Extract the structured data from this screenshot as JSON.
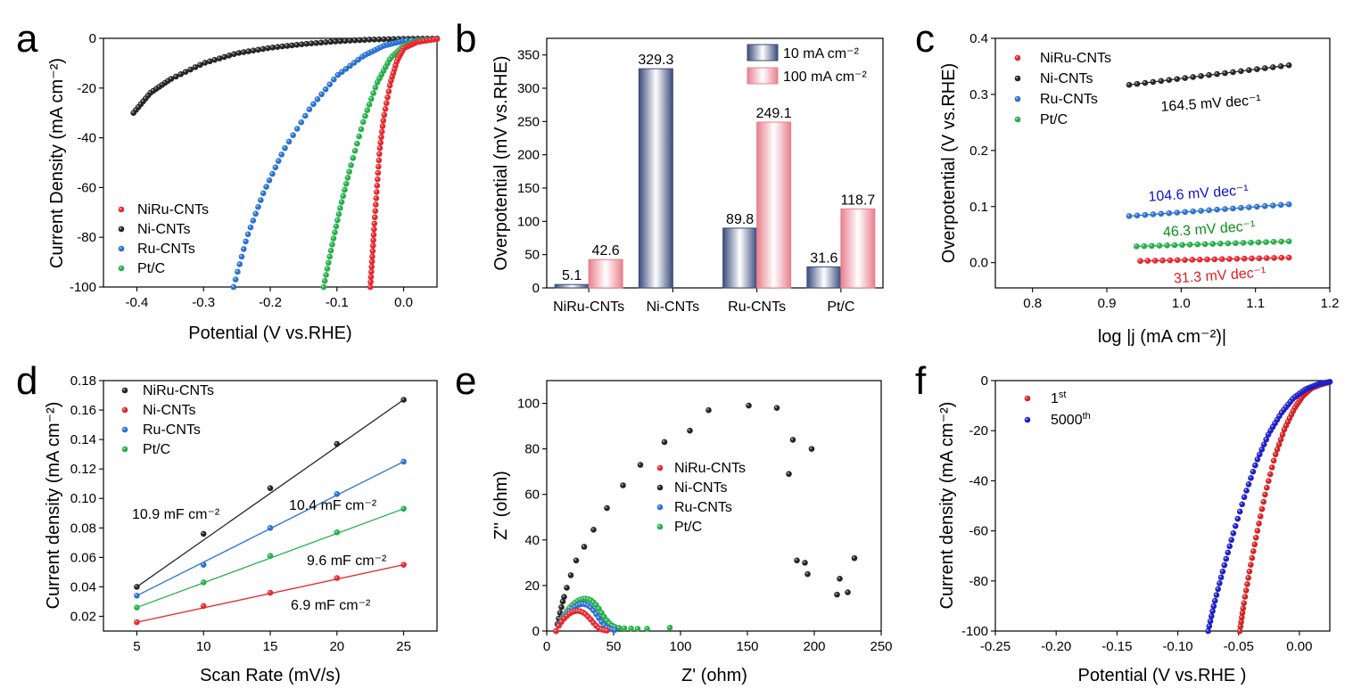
{
  "figure": {
    "colors": {
      "red": "#e8272e",
      "black": "#262626",
      "blue": "#2a72d1",
      "green": "#25b049",
      "navy": "#3b4c7c",
      "pink": "#e8808d",
      "darkblue": "#1010cc",
      "crimson": "#e31b23",
      "mrk_red": "#d62222",
      "dk_green": "#0a8f1a"
    }
  },
  "chart_data": [
    {
      "id": "a",
      "panel_label": "a",
      "type": "line",
      "xlabel": "Potential (V vs.RHE)",
      "ylabel": "Current Density (mA cm⁻²)",
      "xlim": [
        -0.45,
        0.05
      ],
      "ylim": [
        -100,
        0
      ],
      "xticks": [
        -0.4,
        -0.3,
        -0.2,
        -0.1,
        0.0
      ],
      "xticklabels": [
        "-0.4",
        "-0.3",
        "-0.2",
        "-0.1",
        "0.0"
      ],
      "yticks": [
        -100,
        -80,
        -60,
        -40,
        -20,
        0
      ],
      "yticklabels": [
        "-100",
        "-80",
        "-60",
        "-40",
        "-20",
        "0"
      ],
      "legend_position": "bottom-left",
      "series": [
        {
          "name": "NiRu-CNTs",
          "color": "#e8272e",
          "x": [
            0.05,
            0.02,
            0.0,
            -0.01,
            -0.02,
            -0.03,
            -0.036,
            -0.04,
            -0.044,
            -0.047,
            -0.05
          ],
          "y": [
            -0.3,
            -1.5,
            -4,
            -9,
            -18,
            -32,
            -45,
            -60,
            -75,
            -88,
            -100
          ]
        },
        {
          "name": "Ni-CNTs",
          "color": "#262626",
          "x": [
            0.05,
            0.0,
            -0.05,
            -0.1,
            -0.15,
            -0.2,
            -0.25,
            -0.3,
            -0.35,
            -0.38,
            -0.405
          ],
          "y": [
            -0.05,
            -0.2,
            -0.5,
            -1.2,
            -2.3,
            -3.8,
            -6,
            -10,
            -16.5,
            -22,
            -30
          ]
        },
        {
          "name": "Ru-CNTs",
          "color": "#2a72d1",
          "x": [
            0.05,
            0.0,
            -0.03,
            -0.06,
            -0.1,
            -0.14,
            -0.18,
            -0.21,
            -0.235,
            -0.255
          ],
          "y": [
            -0.2,
            -1,
            -3,
            -7,
            -15,
            -28,
            -45,
            -62,
            -80,
            -100
          ]
        },
        {
          "name": "Pt/C",
          "color": "#25b049",
          "x": [
            0.05,
            0.02,
            0.0,
            -0.02,
            -0.04,
            -0.06,
            -0.08,
            -0.095,
            -0.108,
            -0.12
          ],
          "y": [
            -0.2,
            -1,
            -3,
            -8,
            -18,
            -33,
            -52,
            -68,
            -84,
            -100
          ]
        }
      ]
    },
    {
      "id": "b",
      "panel_label": "b",
      "type": "bar",
      "ylabel": "Overpotential (mV vs.RHE)",
      "ylim": [
        0,
        375
      ],
      "yticks": [
        0,
        50,
        100,
        150,
        200,
        250,
        300,
        350
      ],
      "yticklabels": [
        "0",
        "50",
        "100",
        "150",
        "200",
        "250",
        "300",
        "350"
      ],
      "categories": [
        "NiRu-CNTs",
        "Ni-CNTs",
        "Ru-CNTs",
        "Pt/C"
      ],
      "legend_position": "top-right",
      "series": [
        {
          "name": "10 mA cm⁻²",
          "color": "#3b4c7c",
          "values": [
            5.1,
            329.3,
            89.8,
            31.6
          ],
          "labels": [
            "5.1",
            "329.3",
            "89.8",
            "31.6"
          ]
        },
        {
          "name": "100 mA cm⁻²",
          "color": "#e8808d",
          "values": [
            42.6,
            null,
            249.1,
            118.7
          ],
          "labels": [
            "42.6",
            "",
            "249.1",
            "118.7"
          ]
        }
      ]
    },
    {
      "id": "c",
      "panel_label": "c",
      "type": "line",
      "xlabel": "log |j (mA cm⁻²)|",
      "ylabel": "Overpotential (V vs.RHE)",
      "xlim": [
        0.75,
        1.2
      ],
      "ylim": [
        -0.045,
        0.4
      ],
      "xticks": [
        0.8,
        0.9,
        1.0,
        1.1,
        1.2
      ],
      "xticklabels": [
        "0.8",
        "0.9",
        "1.0",
        "1.1",
        "1.2"
      ],
      "yticks": [
        0.0,
        0.1,
        0.2,
        0.3,
        0.4
      ],
      "yticklabels": [
        "0.0",
        "0.1",
        "0.2",
        "0.3",
        "0.4"
      ],
      "legend_position": "top-left",
      "series": [
        {
          "name": "NiRu-CNTs",
          "color": "#e8272e",
          "x_start": 0.945,
          "x_end": 1.145,
          "y_start": 0.003,
          "y_end": 0.009,
          "slope_label": "31.3 mV dec⁻¹",
          "label_color": "#e31b23"
        },
        {
          "name": "Ni-CNTs",
          "color": "#262626",
          "x_start": 0.93,
          "x_end": 1.145,
          "y_start": 0.317,
          "y_end": 0.352,
          "slope_label": "164.5 mV dec⁻¹",
          "label_color": "#000000"
        },
        {
          "name": "Ru-CNTs",
          "color": "#2a72d1",
          "x_start": 0.93,
          "x_end": 1.145,
          "y_start": 0.083,
          "y_end": 0.104,
          "slope_label": "104.6 mV dec⁻¹",
          "label_color": "#1010cc"
        },
        {
          "name": "Pt/C",
          "color": "#25b049",
          "x_start": 0.94,
          "x_end": 1.145,
          "y_start": 0.029,
          "y_end": 0.038,
          "slope_label": "46.3 mV dec⁻¹",
          "label_color": "#0a8f1a"
        }
      ]
    },
    {
      "id": "d",
      "panel_label": "d",
      "type": "scatter",
      "xlabel": "Scan Rate (mV/s)",
      "ylabel": "Current density (mA cm⁻²)",
      "xlim": [
        2.5,
        27.5
      ],
      "ylim": [
        0.01,
        0.18
      ],
      "xticks": [
        5,
        10,
        15,
        20,
        25
      ],
      "xticklabels": [
        "5",
        "10",
        "15",
        "20",
        "25"
      ],
      "yticks": [
        0.02,
        0.04,
        0.06,
        0.08,
        0.1,
        0.12,
        0.14,
        0.16,
        0.18
      ],
      "yticklabels": [
        "0.02",
        "0.04",
        "0.06",
        "0.08",
        "0.10",
        "0.12",
        "0.14",
        "0.16",
        "0.18"
      ],
      "legend_position": "top-left",
      "x": [
        5,
        10,
        15,
        20,
        25
      ],
      "series": [
        {
          "name": "NiRu-CNTs",
          "color": "#262626",
          "values": [
            0.04,
            0.076,
            0.107,
            0.137,
            0.167
          ]
        },
        {
          "name": "Ni-CNTs",
          "color": "#e8272e",
          "values": [
            0.016,
            0.027,
            0.036,
            0.046,
            0.055
          ]
        },
        {
          "name": "Ru-CNTs",
          "color": "#2a72d1",
          "values": [
            0.034,
            0.055,
            0.08,
            0.103,
            0.125
          ]
        },
        {
          "name": "Pt/C",
          "color": "#25b049",
          "values": [
            0.026,
            0.043,
            0.061,
            0.077,
            0.093
          ]
        }
      ],
      "annotations": [
        "10.9 mF cm⁻²",
        "10.4 mF cm⁻²",
        "9.6 mF cm⁻²",
        "6.9 mF cm⁻²"
      ]
    },
    {
      "id": "e",
      "panel_label": "e",
      "type": "scatter",
      "xlabel": "Z' (ohm)",
      "ylabel": "Z'' (ohm)",
      "xlim": [
        0,
        250
      ],
      "ylim": [
        0,
        110
      ],
      "xticks": [
        0,
        50,
        100,
        150,
        200,
        250
      ],
      "xticklabels": [
        "0",
        "50",
        "100",
        "150",
        "200",
        "250"
      ],
      "yticks": [
        0,
        20,
        40,
        60,
        80,
        100
      ],
      "yticklabels": [
        "0",
        "20",
        "40",
        "60",
        "80",
        "100"
      ],
      "legend_position": "center",
      "series": [
        {
          "name": "NiRu-CNTs",
          "color": "#e8272e",
          "x": [
            7,
            9,
            11,
            13,
            15,
            17,
            19,
            21,
            23,
            25,
            27,
            29,
            31,
            33,
            35,
            37,
            39,
            41,
            43,
            45
          ],
          "y": [
            0,
            2.3,
            4,
            5.5,
            6.6,
            7.6,
            8.3,
            8.7,
            8.9,
            8.7,
            8.2,
            7.4,
            6.3,
            5.0,
            3.6,
            2.3,
            1.3,
            0.7,
            0.4,
            0.2
          ]
        },
        {
          "name": "Ni-CNTs",
          "color": "#262626",
          "x": [
            7,
            8,
            9,
            10,
            11,
            12,
            13,
            15,
            18,
            22,
            28,
            35,
            45,
            57,
            70,
            88,
            107,
            121,
            151,
            172,
            181,
            184,
            187,
            193,
            195,
            198,
            217,
            219,
            225,
            230
          ],
          "y": [
            0,
            3,
            5.5,
            8,
            10.5,
            13,
            15,
            19,
            24.5,
            31,
            37,
            44.5,
            54,
            64,
            73,
            83,
            88,
            97,
            99,
            98,
            69,
            84,
            31,
            30,
            25,
            80,
            16,
            23,
            17,
            32
          ]
        },
        {
          "name": "Ru-CNTs",
          "color": "#2a72d1",
          "x": [
            7,
            9,
            11,
            13,
            15,
            17,
            19,
            21,
            23,
            25,
            27,
            29,
            31,
            33,
            35,
            37,
            39,
            41,
            43,
            45,
            47,
            49,
            51
          ],
          "y": [
            0,
            2.5,
            4.6,
            6.2,
            7.6,
            8.8,
            9.8,
            10.6,
            11.3,
            11.7,
            11.9,
            11.7,
            11.2,
            10.3,
            9.0,
            7.4,
            5.7,
            4.0,
            2.6,
            1.6,
            1.0,
            0.7,
            0.5
          ]
        },
        {
          "name": "Pt/C",
          "color": "#25b049",
          "x": [
            7,
            9,
            11,
            13,
            15,
            17,
            19,
            21,
            23,
            25,
            27,
            29,
            31,
            33,
            35,
            37,
            39,
            41,
            43,
            45,
            47,
            49,
            51,
            54,
            58,
            63,
            68,
            75,
            92
          ],
          "y": [
            0,
            2.8,
            5.1,
            7.1,
            8.8,
            10.2,
            11.4,
            12.4,
            13.2,
            13.8,
            14.1,
            14.2,
            14.0,
            13.5,
            12.6,
            11.4,
            9.8,
            8.0,
            6.2,
            4.6,
            3.3,
            2.4,
            1.8,
            1.4,
            1.2,
            1.1,
            1.0,
            1.0,
            1.5
          ]
        }
      ]
    },
    {
      "id": "f",
      "panel_label": "f",
      "type": "line",
      "xlabel": "Potential (V vs.RHE )",
      "ylabel": "Current density (mA cm⁻²)",
      "xlim": [
        -0.25,
        0.025
      ],
      "ylim": [
        -100,
        0
      ],
      "xticks": [
        -0.25,
        -0.2,
        -0.15,
        -0.1,
        -0.05,
        0.0
      ],
      "xticklabels": [
        "-0.25",
        "-0.20",
        "-0.15",
        "-0.10",
        "-0.05",
        "0.00"
      ],
      "yticks": [
        -100,
        -80,
        -60,
        -40,
        -20,
        0
      ],
      "yticklabels": [
        "-100",
        "-80",
        "-60",
        "-40",
        "-20",
        "0"
      ],
      "legend_position": "top-left",
      "series": [
        {
          "name": "1",
          "sup": "st",
          "color": "#d62222",
          "x": [
            0.025,
            0.018,
            0.01,
            0.003,
            -0.004,
            -0.012,
            -0.02,
            -0.028,
            -0.035,
            -0.041,
            -0.046,
            -0.049
          ],
          "y": [
            -0.5,
            -1.5,
            -3,
            -6,
            -11,
            -19,
            -30,
            -45,
            -61,
            -76,
            -90,
            -100
          ]
        },
        {
          "name": "5000",
          "sup": "th",
          "color": "#1f1fc9",
          "x": [
            0.025,
            0.015,
            0.005,
            -0.005,
            -0.015,
            -0.025,
            -0.035,
            -0.045,
            -0.055,
            -0.063,
            -0.07,
            -0.075
          ],
          "y": [
            -0.5,
            -1.5,
            -3.5,
            -7,
            -13,
            -21,
            -32,
            -46,
            -62,
            -76,
            -89,
            -100
          ]
        }
      ]
    }
  ]
}
